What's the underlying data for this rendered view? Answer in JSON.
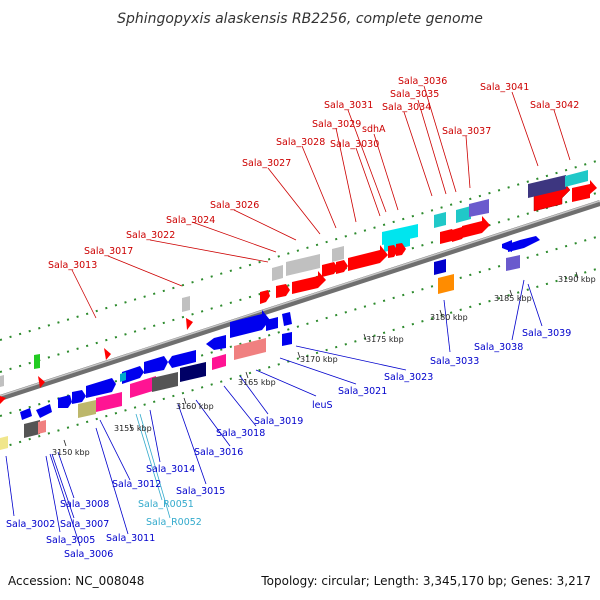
{
  "title": "Sphingopyxis alaskensis RB2256, complete genome",
  "footer": {
    "accession": "Accession: NC_008048",
    "topology": "Topology: circular; Length: 3,345,170 bp; Genes: 3,217"
  },
  "colors": {
    "top_label": "#cc0000",
    "bottom_label": "#0000cc",
    "rna_label": "#33aacc",
    "backbone": "#8a8a8a",
    "dot": "#2e8b2e"
  },
  "ticks": [
    "3150 kbp",
    "3155 kbp",
    "3160 kbp",
    "3165 kbp",
    "3170 kbp",
    "3175 kbp",
    "3180 kbp",
    "3185 kbp",
    "3190 kbp"
  ],
  "top_labels": [
    "Sala_3013",
    "Sala_3017",
    "Sala_3022",
    "Sala_3024",
    "Sala_3026",
    "Sala_3027",
    "Sala_3028",
    "Sala_3029",
    "Sala_3030",
    "Sala_3031",
    "sdhA",
    "Sala_3034",
    "Sala_3035",
    "Sala_3036",
    "Sala_3037",
    "Sala_3041",
    "Sala_3042"
  ],
  "bottom_labels": [
    "Sala_3002",
    "Sala_3005",
    "Sala_3006",
    "Sala_3007",
    "Sala_3008",
    "Sala_3011",
    "Sala_3012",
    "Sala_R0051",
    "Sala_R0052",
    "Sala_3014",
    "Sala_3015",
    "Sala_3016",
    "Sala_3018",
    "Sala_3019",
    "leuS",
    "Sala_3021",
    "Sala_3023",
    "Sala_3033",
    "Sala_3038",
    "Sala_3039"
  ]
}
